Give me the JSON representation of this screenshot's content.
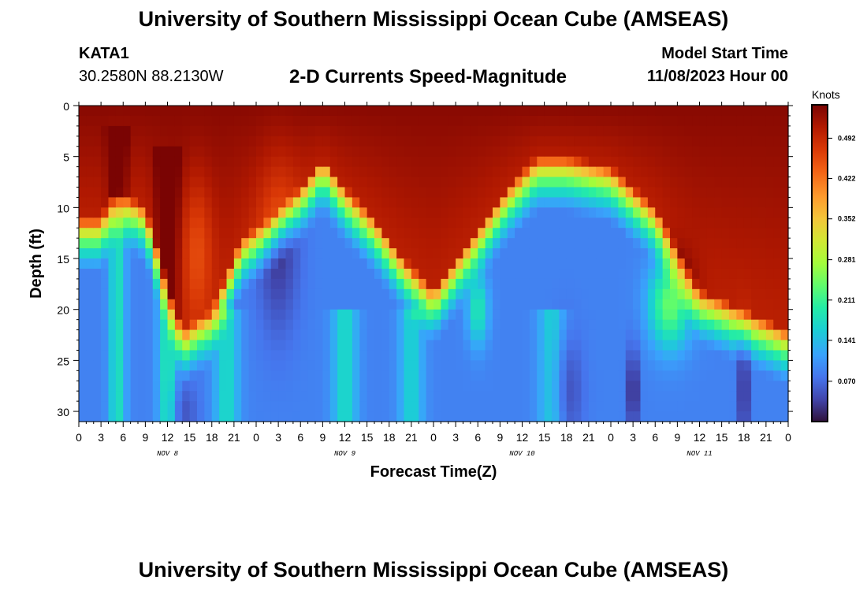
{
  "header": {
    "title_top": "University of Southern Mississippi Ocean Cube (AMSEAS)",
    "title_bottom": "University of Southern Mississippi Ocean Cube (AMSEAS)",
    "station": "KATA1",
    "coords": "30.2580N  88.2130W",
    "subtitle": "2-D Currents Speed-Magnitude",
    "model_start_label": "Model Start Time",
    "model_start_value": "11/08/2023 Hour 00"
  },
  "chart_data": {
    "type": "heatmap",
    "title": "2-D Currents Speed-Magnitude",
    "xlabel": "Forecast Time(Z)",
    "ylabel": "Depth (ft)",
    "xlim": [
      0,
      96
    ],
    "ylim": [
      0,
      31
    ],
    "x_tick_labels": [
      "0",
      "3",
      "6",
      "9",
      "12",
      "15",
      "18",
      "21",
      "0",
      "3",
      "6",
      "9",
      "12",
      "15",
      "18",
      "21",
      "0",
      "3",
      "6",
      "9",
      "12",
      "15",
      "18",
      "21",
      "0",
      "3",
      "6",
      "9",
      "12",
      "15",
      "18",
      "21",
      "0"
    ],
    "y_ticks": [
      0,
      5,
      10,
      15,
      20,
      25,
      30
    ],
    "day_labels": [
      "NOV 8",
      "NOV 9",
      "NOV 10",
      "NOV 11"
    ],
    "colorbar": {
      "title": "Knots",
      "range": [
        0,
        0.55
      ],
      "ticks": [
        0.492,
        0.422,
        0.352,
        0.281,
        0.211,
        0.141,
        0.07
      ],
      "tick_labels": [
        "0.492",
        "0.422",
        "0.352",
        "0.281",
        "0.211",
        "0.141",
        "0.070"
      ]
    },
    "surface_layer_depth_ft": [
      11,
      11,
      8,
      10,
      22,
      20,
      13,
      11,
      8,
      5,
      8,
      11,
      15,
      18,
      15,
      12,
      8,
      5,
      5,
      6,
      10,
      18,
      22
    ],
    "surface_layer_hours": [
      0,
      3,
      5,
      9,
      14,
      18,
      22,
      26,
      30,
      33,
      36,
      40,
      44,
      48,
      51,
      54,
      58,
      62,
      66,
      72,
      78,
      84,
      96
    ],
    "colors": {
      "low": "#30123b",
      "mid": "#21b1ff",
      "high": "#7a0403"
    }
  }
}
